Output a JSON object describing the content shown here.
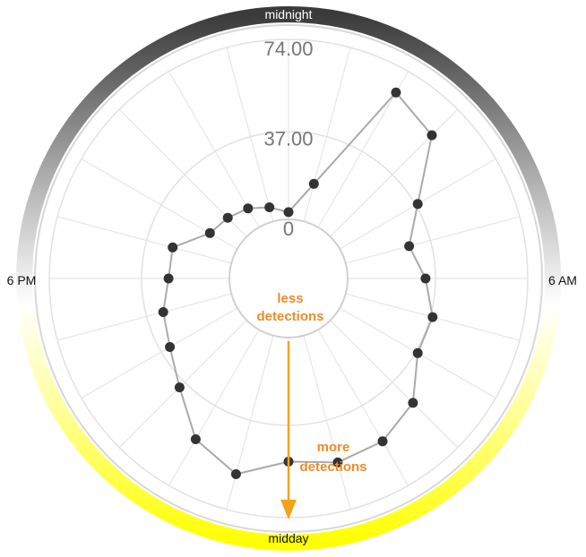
{
  "chart_data": {
    "type": "radar",
    "title": "",
    "clock_labels": {
      "top": "midnight",
      "right": "6 AM",
      "bottom": "midday",
      "left": "6 PM"
    },
    "radial_ticks": [
      "0",
      "37.00",
      "74.00"
    ],
    "radial_range": [
      0,
      74
    ],
    "hours": [
      0,
      1,
      2,
      3,
      4,
      5,
      6,
      7,
      8,
      9,
      10,
      11,
      12,
      13,
      14,
      15,
      16,
      17,
      18,
      19,
      20,
      21,
      22,
      23
    ],
    "values": [
      3,
      6,
      9,
      11,
      13,
      25,
      25,
      29,
      32,
      39,
      52,
      59,
      51,
      54,
      53,
      48,
      37,
      37,
      32,
      27,
      37,
      59,
      64,
      16
    ],
    "annotations": {
      "inner": [
        "less",
        "detections"
      ],
      "outer": [
        "more",
        "detections"
      ]
    },
    "colors": {
      "series_line": "#aaaaaa",
      "series_point": "#333333",
      "arrow": "#f5a21b",
      "annotation_text": "#ee8a2a",
      "ring_night": "#3a3a3a",
      "ring_day": "#ffff00"
    }
  }
}
